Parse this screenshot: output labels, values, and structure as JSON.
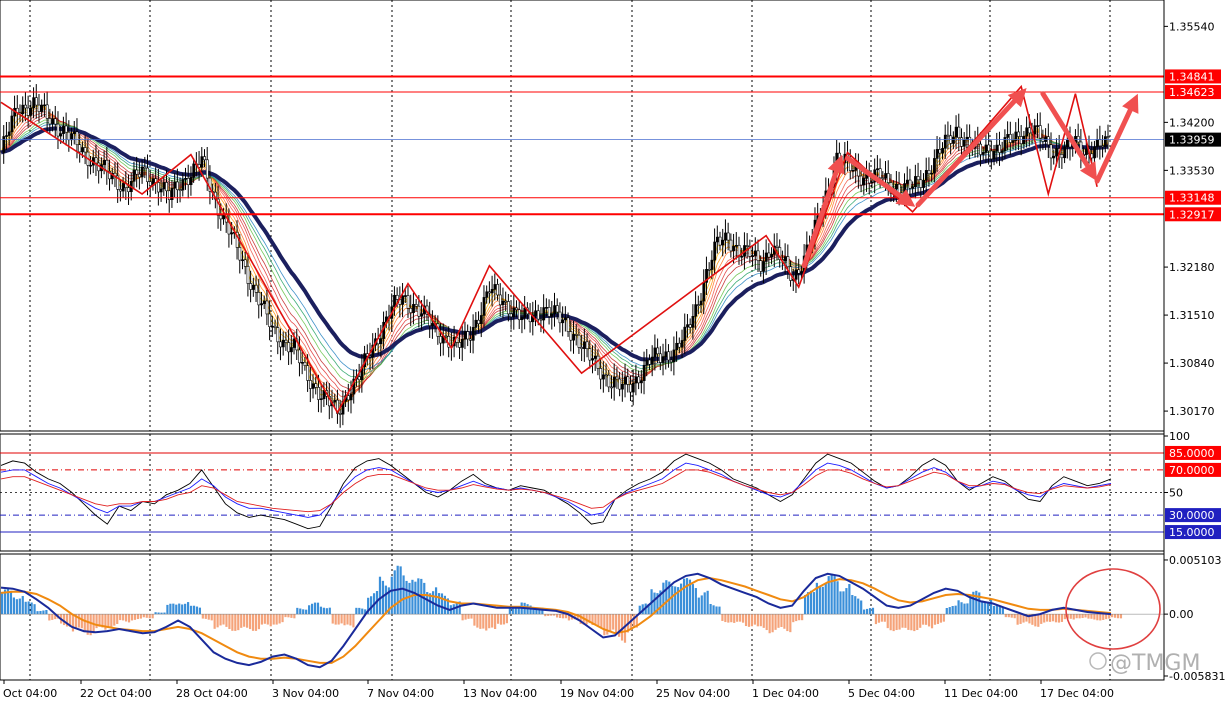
{
  "chart_data": [
    {
      "panel": "price",
      "type": "candlestick",
      "symbol_hint": "",
      "ylim": [
        1.2992,
        1.3588
      ],
      "yticks": [
        "1.35540",
        "1.34200",
        "1.33530",
        "1.32180",
        "1.31510",
        "1.30840",
        "1.30170"
      ],
      "ytick_values": [
        1.3554,
        1.342,
        1.3353,
        1.3218,
        1.3151,
        1.3084,
        1.3017
      ],
      "levels": [
        {
          "label": "1.34841",
          "value": 1.34841,
          "style": "red-solid"
        },
        {
          "label": "1.34623",
          "value": 1.34623,
          "style": "red-thin"
        },
        {
          "label": "1.33959",
          "value": 1.33959,
          "style": "blue-current"
        },
        {
          "label": "1.33148",
          "value": 1.33148,
          "style": "red-thin"
        },
        {
          "label": "1.32917",
          "value": 1.32917,
          "style": "red-solid"
        }
      ],
      "close_path": [
        [
          0,
          1.3378
        ],
        [
          6,
          1.344
        ],
        [
          12,
          1.3445
        ],
        [
          18,
          1.3425
        ],
        [
          24,
          1.3405
        ],
        [
          30,
          1.338
        ],
        [
          36,
          1.336
        ],
        [
          40,
          1.3345
        ],
        [
          46,
          1.333
        ],
        [
          52,
          1.335
        ],
        [
          58,
          1.3335
        ],
        [
          62,
          1.3315
        ],
        [
          66,
          1.3335
        ],
        [
          70,
          1.335
        ],
        [
          74,
          1.3365
        ],
        [
          78,
          1.332
        ],
        [
          84,
          1.327
        ],
        [
          90,
          1.3215
        ],
        [
          96,
          1.3165
        ],
        [
          100,
          1.313
        ],
        [
          104,
          1.3115
        ],
        [
          108,
          1.3105
        ],
        [
          112,
          1.307
        ],
        [
          118,
          1.304
        ],
        [
          124,
          1.3015
        ],
        [
          128,
          1.3045
        ],
        [
          132,
          1.3065
        ],
        [
          136,
          1.31
        ],
        [
          140,
          1.313
        ],
        [
          144,
          1.316
        ],
        [
          148,
          1.3175
        ],
        [
          152,
          1.3165
        ],
        [
          156,
          1.315
        ],
        [
          160,
          1.313
        ],
        [
          164,
          1.312
        ],
        [
          168,
          1.3105
        ],
        [
          172,
          1.312
        ],
        [
          176,
          1.315
        ],
        [
          180,
          1.3185
        ],
        [
          184,
          1.3175
        ],
        [
          188,
          1.316
        ],
        [
          192,
          1.3145
        ],
        [
          196,
          1.315
        ],
        [
          200,
          1.316
        ],
        [
          204,
          1.315
        ],
        [
          208,
          1.314
        ],
        [
          212,
          1.312
        ],
        [
          216,
          1.3095
        ],
        [
          220,
          1.308
        ],
        [
          224,
          1.306
        ],
        [
          228,
          1.305
        ],
        [
          232,
          1.3055
        ],
        [
          236,
          1.307
        ],
        [
          240,
          1.309
        ],
        [
          244,
          1.3095
        ],
        [
          248,
          1.31
        ],
        [
          252,
          1.312
        ],
        [
          256,
          1.316
        ],
        [
          260,
          1.321
        ],
        [
          264,
          1.325
        ],
        [
          268,
          1.326
        ],
        [
          272,
          1.324
        ],
        [
          276,
          1.3235
        ],
        [
          280,
          1.3225
        ],
        [
          284,
          1.3245
        ],
        [
          288,
          1.3225
        ],
        [
          292,
          1.3205
        ],
        [
          296,
          1.323
        ],
        [
          300,
          1.327
        ],
        [
          304,
          1.332
        ],
        [
          308,
          1.337
        ],
        [
          312,
          1.336
        ],
        [
          316,
          1.335
        ],
        [
          320,
          1.334
        ],
        [
          324,
          1.3345
        ],
        [
          328,
          1.3335
        ],
        [
          332,
          1.3325
        ],
        [
          336,
          1.333
        ],
        [
          340,
          1.3345
        ],
        [
          344,
          1.3365
        ],
        [
          348,
          1.339
        ],
        [
          352,
          1.341
        ],
        [
          356,
          1.339
        ],
        [
          360,
          1.338
        ],
        [
          364,
          1.3385
        ],
        [
          368,
          1.338
        ],
        [
          372,
          1.3395
        ],
        [
          376,
          1.3405
        ],
        [
          380,
          1.341
        ],
        [
          384,
          1.3395
        ],
        [
          388,
          1.338
        ],
        [
          392,
          1.338
        ],
        [
          396,
          1.339
        ],
        [
          400,
          1.338
        ],
        [
          404,
          1.3385
        ],
        [
          408,
          1.339
        ]
      ],
      "annotations": {
        "zigzag": [
          [
            0,
            1.3448
          ],
          [
            52,
            1.332
          ],
          [
            70,
            1.3375
          ],
          [
            124,
            1.3015
          ],
          [
            150,
            1.3195
          ],
          [
            166,
            1.3105
          ],
          [
            180,
            1.322
          ],
          [
            214,
            1.307
          ],
          [
            282,
            1.3262
          ],
          [
            294,
            1.319
          ],
          [
            312,
            1.3378
          ],
          [
            336,
            1.3295
          ],
          [
            376,
            1.347
          ],
          [
            386,
            1.332
          ],
          [
            396,
            1.346
          ],
          [
            404,
            1.333
          ]
        ],
        "arrows": [
          [
            [
              296,
              1.322
            ],
            [
              310,
              1.3375
            ]
          ],
          [
            [
              312,
              1.337
            ],
            [
              337,
              1.3302
            ]
          ],
          [
            [
              338,
              1.3305
            ],
            [
              378,
              1.3468
            ]
          ],
          [
            [
              384,
              1.346
            ],
            [
              404,
              1.3338
            ]
          ],
          [
            [
              404,
              1.3338
            ],
            [
              419,
              1.346
            ]
          ]
        ]
      },
      "xticks": [
        "Oct 04:00",
        "22 Oct 04:00",
        "28 Oct 04:00",
        "3 Nov 04:00",
        "7 Nov 04:00",
        "13 Nov 04:00",
        "19 Nov 04:00",
        "25 Nov 04:00",
        "1 Dec 04:00",
        "5 Dec 04:00",
        "11 Dec 04:00",
        "17 Dec 04:00"
      ],
      "xtick_index": [
        11,
        45,
        80,
        115,
        150,
        186,
        222,
        258,
        294,
        330,
        366,
        402
      ],
      "grid": true
    },
    {
      "panel": "oscillator",
      "type": "line",
      "ylim": [
        0,
        100
      ],
      "yticks": [
        "100",
        "50"
      ],
      "ytick_values": [
        100,
        50
      ],
      "levels": [
        {
          "label": "85.0000",
          "value": 85,
          "style": "red-solid"
        },
        {
          "label": "70.0000",
          "value": 70,
          "style": "red-dashdot"
        },
        {
          "label": "30.0000",
          "value": 30,
          "style": "blue-dashdot"
        },
        {
          "label": "15.0000",
          "value": 15,
          "style": "blue-solid"
        }
      ],
      "series": [
        {
          "color": "#000000",
          "values": [
            74,
            78,
            76,
            68,
            62,
            58,
            50,
            40,
            30,
            22,
            38,
            34,
            42,
            40,
            48,
            52,
            58,
            70,
            55,
            40,
            32,
            28,
            30,
            28,
            26,
            22,
            18,
            20,
            38,
            58,
            72,
            78,
            80,
            74,
            66,
            58,
            50,
            46,
            52,
            60,
            66,
            58,
            54,
            52,
            56,
            54,
            52,
            46,
            40,
            32,
            22,
            24,
            44,
            52,
            58,
            62,
            68,
            78,
            84,
            80,
            76,
            70,
            62,
            58,
            54,
            48,
            42,
            48,
            62,
            76,
            84,
            80,
            76,
            68,
            60,
            54,
            56,
            64,
            74,
            80,
            74,
            60,
            52,
            58,
            64,
            60,
            52,
            44,
            42,
            56,
            64,
            60,
            56,
            58,
            62
          ]
        },
        {
          "color": "#1a1aff",
          "values": [
            68,
            70,
            70,
            64,
            58,
            54,
            48,
            42,
            36,
            32,
            38,
            38,
            42,
            42,
            46,
            50,
            54,
            62,
            56,
            46,
            40,
            36,
            36,
            34,
            32,
            30,
            28,
            30,
            40,
            54,
            64,
            70,
            72,
            70,
            64,
            58,
            52,
            50,
            52,
            56,
            60,
            56,
            54,
            52,
            54,
            52,
            50,
            46,
            42,
            36,
            30,
            32,
            44,
            50,
            54,
            58,
            62,
            70,
            76,
            74,
            70,
            66,
            60,
            56,
            52,
            48,
            46,
            50,
            60,
            70,
            76,
            74,
            70,
            64,
            58,
            54,
            56,
            62,
            68,
            72,
            68,
            60,
            54,
            56,
            60,
            58,
            52,
            48,
            46,
            54,
            58,
            56,
            54,
            56,
            58
          ]
        },
        {
          "color": "#e02020",
          "values": [
            62,
            64,
            64,
            60,
            56,
            52,
            48,
            44,
            40,
            38,
            40,
            40,
            42,
            42,
            44,
            48,
            50,
            56,
            54,
            48,
            42,
            40,
            38,
            36,
            35,
            34,
            33,
            34,
            40,
            50,
            58,
            64,
            66,
            66,
            62,
            58,
            54,
            52,
            52,
            54,
            57,
            55,
            53,
            52,
            53,
            52,
            50,
            47,
            44,
            40,
            36,
            37,
            44,
            49,
            52,
            55,
            58,
            64,
            70,
            70,
            68,
            64,
            60,
            56,
            53,
            50,
            48,
            50,
            57,
            65,
            70,
            70,
            67,
            62,
            58,
            55,
            56,
            60,
            64,
            68,
            66,
            60,
            56,
            56,
            58,
            57,
            53,
            50,
            49,
            53,
            56,
            55,
            54,
            55,
            57
          ]
        }
      ],
      "grid": true
    },
    {
      "panel": "macd",
      "type": "bar+line",
      "ylim": [
        -0.00583,
        0.0051
      ],
      "yticks": [
        "0.005103",
        "0.00",
        "-0.005831"
      ],
      "ytick_values": [
        0.005103,
        0.0,
        -0.005831
      ],
      "histogram": [
        0.0024,
        0.002,
        0.0012,
        0.0004,
        -0.0006,
        -0.0012,
        -0.0018,
        -0.002,
        -0.0017,
        -0.0012,
        -0.0008,
        -0.0006,
        -0.0004,
        0.0002,
        0.001,
        0.0013,
        0.0008,
        -0.0006,
        -0.0014,
        -0.0016,
        -0.0017,
        -0.0016,
        -0.0013,
        -0.001,
        -0.0004,
        0.0006,
        0.0011,
        0.0008,
        -0.001,
        -0.0014,
        0.0006,
        0.0022,
        0.0036,
        0.0046,
        0.0042,
        0.0034,
        0.0028,
        0.002,
        0.0012,
        -0.0006,
        -0.0014,
        -0.0018,
        -0.001,
        0.0008,
        0.0011,
        0.0006,
        -0.0002,
        -0.0004,
        -0.0007,
        -0.001,
        -0.0014,
        -0.002,
        -0.0027,
        -0.0018,
        0.001,
        0.0028,
        0.0032,
        0.0036,
        0.0034,
        0.0022,
        0.001,
        -0.0008,
        -0.001,
        -0.0012,
        -0.0016,
        -0.0018,
        -0.0017,
        -0.0008,
        0.0022,
        0.0036,
        0.0038,
        0.003,
        0.0018,
        0.0006,
        -0.001,
        -0.0016,
        -0.0018,
        -0.0016,
        -0.0014,
        -0.001,
        0.0008,
        0.0014,
        0.0022,
        0.0016,
        0.0008,
        -0.0004,
        -0.001,
        -0.0012,
        -0.001,
        -0.0008,
        -0.0006,
        -0.0004,
        -0.0006,
        -0.0006,
        -0.0004
      ],
      "main_line": [
        0.0025,
        0.0024,
        0.0021,
        0.0014,
        0.0006,
        -0.0004,
        -0.0012,
        -0.0016,
        -0.0017,
        -0.0016,
        -0.0014,
        -0.0016,
        -0.0018,
        -0.0017,
        -0.0012,
        -0.0006,
        -0.0012,
        -0.0024,
        -0.0036,
        -0.0042,
        -0.0046,
        -0.0048,
        -0.0045,
        -0.004,
        -0.0038,
        -0.0042,
        -0.0048,
        -0.005,
        -0.0044,
        -0.003,
        -0.0014,
        0.0002,
        0.0014,
        0.0022,
        0.0024,
        0.002,
        0.0014,
        0.0008,
        0.0004,
        0.0008,
        0.001,
        0.0008,
        0.0006,
        0.0006,
        0.0006,
        0.0005,
        0.0004,
        0.0003,
        0.0,
        -0.0006,
        -0.0014,
        -0.0022,
        -0.002,
        -0.001,
        0.0,
        0.001,
        0.002,
        0.003,
        0.0036,
        0.0038,
        0.0034,
        0.0028,
        0.0024,
        0.002,
        0.0016,
        0.001,
        0.0006,
        0.0008,
        0.0022,
        0.0034,
        0.0038,
        0.0036,
        0.003,
        0.0024,
        0.0016,
        0.0008,
        0.0006,
        0.0008,
        0.0014,
        0.002,
        0.0024,
        0.0022,
        0.0016,
        0.0012,
        0.001,
        0.0006,
        0.0002,
        -0.0002,
        0.0,
        0.0004,
        0.0006,
        0.0004,
        0.0002,
        0.0001,
        0.0
      ],
      "signal_line": [
        0.002,
        0.0021,
        0.0021,
        0.0019,
        0.0014,
        0.0008,
        0.0,
        -0.0006,
        -0.001,
        -0.0012,
        -0.0014,
        -0.0015,
        -0.0016,
        -0.0016,
        -0.0014,
        -0.0012,
        -0.0014,
        -0.0018,
        -0.0024,
        -0.003,
        -0.0036,
        -0.004,
        -0.0042,
        -0.0042,
        -0.0041,
        -0.0042,
        -0.0044,
        -0.0046,
        -0.0046,
        -0.004,
        -0.003,
        -0.0018,
        -0.0006,
        0.0006,
        0.0014,
        0.0018,
        0.0018,
        0.0016,
        0.0012,
        0.001,
        0.001,
        0.0009,
        0.0008,
        0.0007,
        0.0007,
        0.0006,
        0.0005,
        0.0004,
        0.0002,
        -0.0002,
        -0.0008,
        -0.0014,
        -0.0018,
        -0.0016,
        -0.001,
        -0.0002,
        0.0008,
        0.0018,
        0.0026,
        0.0032,
        0.0034,
        0.0032,
        0.0029,
        0.0026,
        0.0022,
        0.0018,
        0.0014,
        0.0012,
        0.0016,
        0.0024,
        0.003,
        0.0033,
        0.0032,
        0.0029,
        0.0024,
        0.0018,
        0.0013,
        0.0011,
        0.0012,
        0.0015,
        0.0018,
        0.0019,
        0.0018,
        0.0016,
        0.0014,
        0.0011,
        0.0008,
        0.0005,
        0.0004,
        0.0004,
        0.0005,
        0.0004,
        0.0003,
        0.0002,
        0.0001
      ],
      "colors": {
        "hist_pos": "#3a8fd9",
        "hist_neg": "#f5a37a",
        "main": "#1a2a9a",
        "signal": "#f08a10"
      },
      "grid": true
    }
  ],
  "watermark": "@TMGM",
  "colors": {
    "resistance": "#ff0000",
    "current_price_label": "#000000",
    "ma_thick": "#1b1f5e",
    "zigzag": "#e01010",
    "arrow": "#f05050",
    "circle": "#e04040"
  }
}
